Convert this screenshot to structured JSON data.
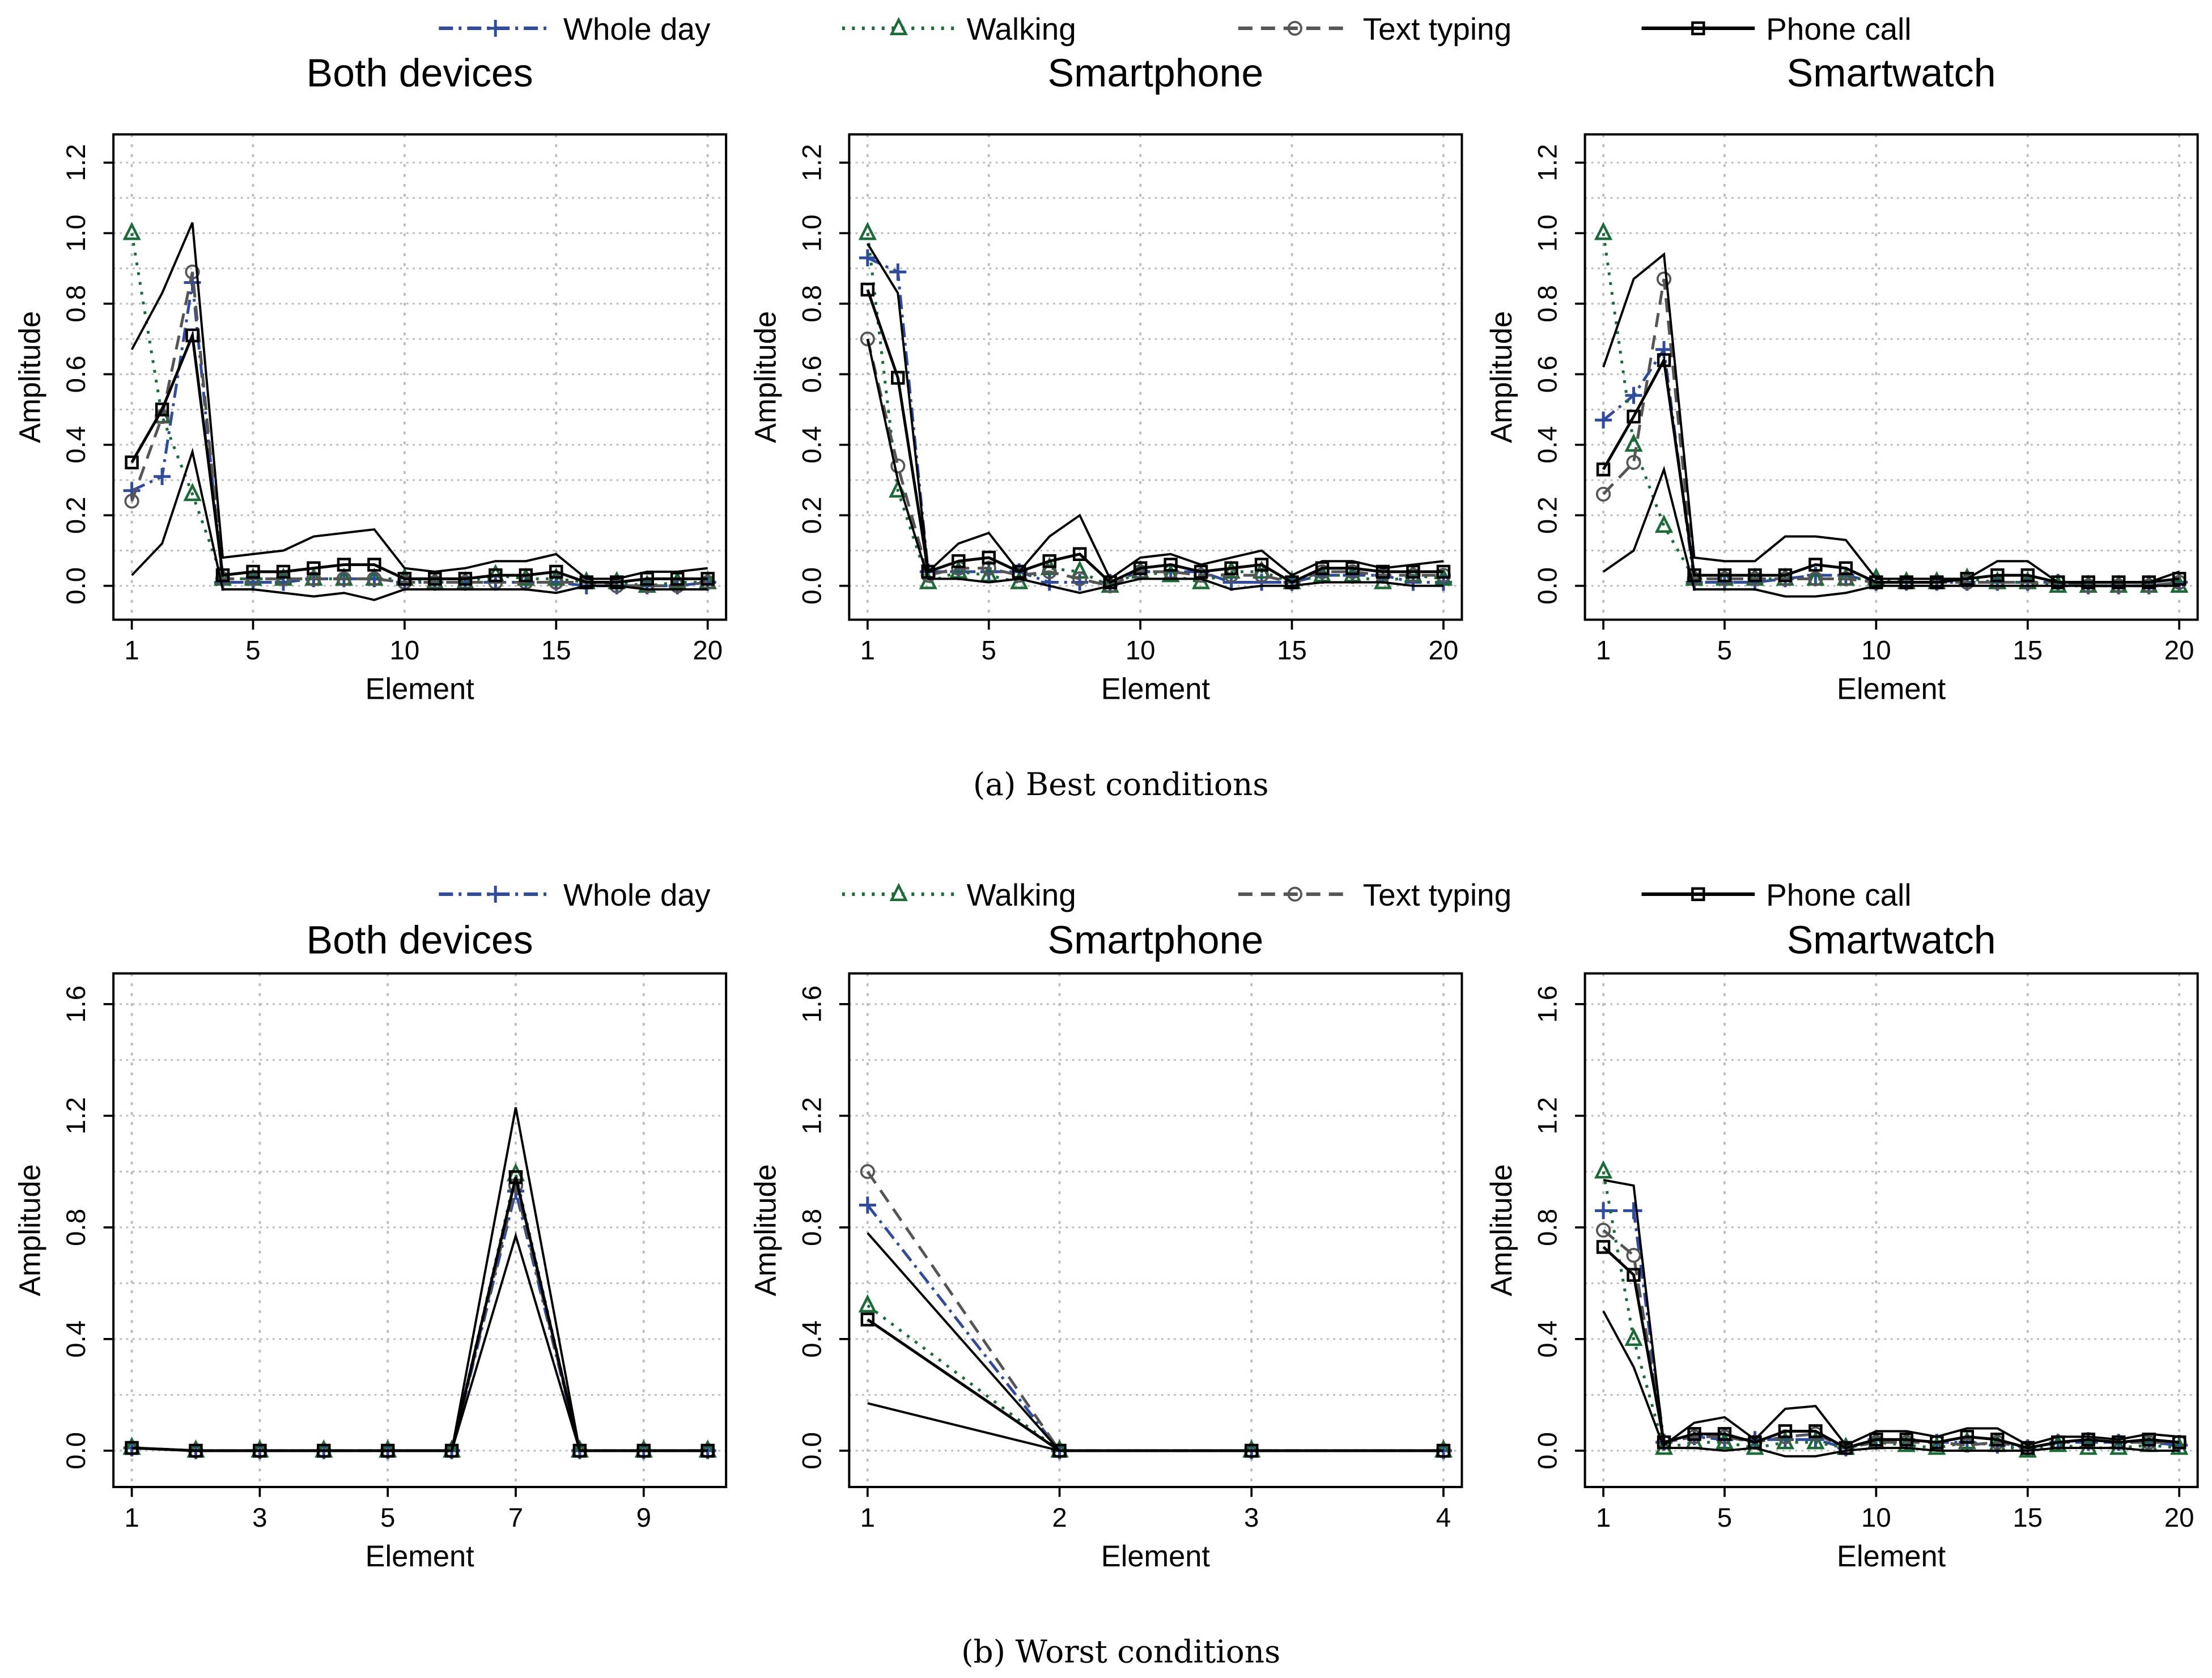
{
  "legend": [
    {
      "name": "Whole day",
      "color": "#2f4ba0",
      "dash": "10,4,2,4",
      "marker": "plus"
    },
    {
      "name": "Walking",
      "color": "#1a6b35",
      "dash": "2,5",
      "marker": "triangle"
    },
    {
      "name": "Text typing",
      "color": "#555555",
      "dash": "10,6",
      "marker": "circle"
    },
    {
      "name": "Phone call",
      "color": "#000000",
      "dash": "",
      "marker": "square"
    }
  ],
  "captions": {
    "a": "(a)  Best conditions",
    "b": "(b)  Worst conditions"
  },
  "chart_data": [
    {
      "type": "line",
      "group": "a",
      "title": "Both devices",
      "xlabel": "Element",
      "ylabel": "Amplitude",
      "xlim": [
        1,
        20
      ],
      "xticks": [
        1,
        5,
        10,
        15,
        20
      ],
      "ylim": [
        -0.096,
        1.28
      ],
      "yticks": [
        "0.0",
        "0.2",
        "0.4",
        "0.6",
        "0.8",
        "1.0",
        "1.2"
      ],
      "yminor": 0.1,
      "grid": true,
      "series": [
        {
          "name": "Whole day",
          "values": [
            0.27,
            0.31,
            0.86,
            0.01,
            0.01,
            0.01,
            0.02,
            0.02,
            0.02,
            0.01,
            0.01,
            0.01,
            0.01,
            0.01,
            0.01,
            0.0,
            0.0,
            0.0,
            0.0,
            0.01
          ]
        },
        {
          "name": "Walking",
          "values": [
            1.0,
            0.48,
            0.26,
            0.02,
            0.02,
            0.02,
            0.02,
            0.02,
            0.02,
            0.02,
            0.01,
            0.01,
            0.03,
            0.02,
            0.02,
            0.01,
            0.01,
            0.0,
            0.01,
            0.01
          ]
        },
        {
          "name": "Text typing",
          "values": [
            0.24,
            0.48,
            0.89,
            0.02,
            0.02,
            0.02,
            0.02,
            0.02,
            0.02,
            0.01,
            0.01,
            0.01,
            0.01,
            0.01,
            0.01,
            0.01,
            0.0,
            0.0,
            0.0,
            0.01
          ]
        },
        {
          "name": "Phone call",
          "values": [
            0.35,
            0.5,
            0.71,
            0.03,
            0.04,
            0.04,
            0.05,
            0.06,
            0.06,
            0.02,
            0.02,
            0.02,
            0.03,
            0.03,
            0.04,
            0.01,
            0.01,
            0.02,
            0.02,
            0.02
          ],
          "upper": [
            0.67,
            0.83,
            1.03,
            0.08,
            0.09,
            0.1,
            0.14,
            0.15,
            0.16,
            0.05,
            0.04,
            0.05,
            0.07,
            0.07,
            0.09,
            0.02,
            0.02,
            0.04,
            0.04,
            0.05
          ],
          "lower": [
            0.03,
            0.12,
            0.38,
            -0.01,
            -0.01,
            -0.02,
            -0.03,
            -0.02,
            -0.04,
            -0.01,
            -0.01,
            -0.01,
            -0.01,
            -0.01,
            -0.02,
            0,
            0,
            -0.01,
            -0.01,
            -0.01
          ]
        }
      ]
    },
    {
      "type": "line",
      "group": "a",
      "title": "Smartphone",
      "xlabel": "Element",
      "ylabel": "Amplitude",
      "xlim": [
        1,
        20
      ],
      "xticks": [
        1,
        5,
        10,
        15,
        20
      ],
      "ylim": [
        -0.096,
        1.28
      ],
      "yticks": [
        "0.0",
        "0.2",
        "0.4",
        "0.6",
        "0.8",
        "1.0",
        "1.2"
      ],
      "yminor": 0.1,
      "grid": true,
      "series": [
        {
          "name": "Whole day",
          "values": [
            0.93,
            0.89,
            0.04,
            0.04,
            0.04,
            0.04,
            0.01,
            0.01,
            0.01,
            0.04,
            0.04,
            0.04,
            0.01,
            0.01,
            0.01,
            0.03,
            0.03,
            0.03,
            0.01,
            0.01
          ]
        },
        {
          "name": "Walking",
          "values": [
            1.0,
            0.27,
            0.01,
            0.04,
            0.03,
            0.01,
            0.05,
            0.04,
            0.0,
            0.04,
            0.03,
            0.01,
            0.04,
            0.04,
            0.01,
            0.03,
            0.03,
            0.01,
            0.03,
            0.02
          ]
        },
        {
          "name": "Text typing",
          "values": [
            0.7,
            0.34,
            0.03,
            0.05,
            0.05,
            0.03,
            0.04,
            0.02,
            0.0,
            0.04,
            0.04,
            0.03,
            0.03,
            0.03,
            0.01,
            0.04,
            0.04,
            0.03,
            0.03,
            0.03
          ]
        },
        {
          "name": "Phone call",
          "values": [
            0.84,
            0.59,
            0.04,
            0.07,
            0.08,
            0.04,
            0.07,
            0.09,
            0.01,
            0.05,
            0.06,
            0.04,
            0.05,
            0.06,
            0.01,
            0.05,
            0.05,
            0.04,
            0.04,
            0.04
          ],
          "upper": [
            0.97,
            0.83,
            0.04,
            0.12,
            0.15,
            0.04,
            0.14,
            0.2,
            0.02,
            0.08,
            0.09,
            0.06,
            0.08,
            0.1,
            0.03,
            0.07,
            0.07,
            0.05,
            0.06,
            0.07
          ],
          "lower": [
            0.7,
            0.3,
            0.02,
            0.02,
            0.01,
            0.02,
            0.0,
            -0.02,
            0.0,
            0.02,
            0.02,
            0.02,
            -0.01,
            0.0,
            0.0,
            0.01,
            0.01,
            0.01,
            0.0,
            0.0
          ]
        }
      ]
    },
    {
      "type": "line",
      "group": "a",
      "title": "Smartwatch",
      "xlabel": "Element",
      "ylabel": "Amplitude",
      "xlim": [
        1,
        20
      ],
      "xticks": [
        1,
        5,
        10,
        15,
        20
      ],
      "ylim": [
        -0.096,
        1.28
      ],
      "yticks": [
        "0.0",
        "0.2",
        "0.4",
        "0.6",
        "0.8",
        "1.0",
        "1.2"
      ],
      "yminor": 0.1,
      "grid": true,
      "series": [
        {
          "name": "Whole day",
          "values": [
            0.47,
            0.54,
            0.67,
            0.01,
            0.01,
            0.01,
            0.02,
            0.03,
            0.03,
            0.01,
            0.01,
            0.01,
            0.01,
            0.01,
            0.01,
            0.01,
            0.0,
            0.0,
            0.0,
            0.01
          ]
        },
        {
          "name": "Walking",
          "values": [
            1.0,
            0.4,
            0.17,
            0.02,
            0.02,
            0.02,
            0.02,
            0.02,
            0.02,
            0.02,
            0.01,
            0.01,
            0.02,
            0.01,
            0.01,
            0.0,
            0.0,
            0.0,
            0.0,
            0.0
          ]
        },
        {
          "name": "Text typing",
          "values": [
            0.26,
            0.35,
            0.87,
            0.02,
            0.02,
            0.02,
            0.02,
            0.02,
            0.02,
            0.01,
            0.01,
            0.01,
            0.01,
            0.01,
            0.01,
            0.01,
            0.0,
            0.0,
            0.0,
            0.01
          ]
        },
        {
          "name": "Phone call",
          "values": [
            0.33,
            0.48,
            0.64,
            0.03,
            0.03,
            0.03,
            0.03,
            0.06,
            0.05,
            0.01,
            0.01,
            0.01,
            0.02,
            0.03,
            0.03,
            0.01,
            0.01,
            0.01,
            0.01,
            0.02
          ],
          "upper": [
            0.62,
            0.87,
            0.94,
            0.08,
            0.07,
            0.07,
            0.14,
            0.14,
            0.13,
            0.02,
            0.02,
            0.02,
            0.02,
            0.07,
            0.07,
            0.01,
            0.01,
            0.01,
            0.01,
            0.04
          ],
          "lower": [
            0.04,
            0.1,
            0.33,
            -0.01,
            -0.01,
            -0.01,
            -0.03,
            -0.03,
            -0.02,
            0,
            0,
            0,
            0,
            0,
            0,
            0,
            0,
            0,
            0,
            0
          ]
        }
      ]
    },
    {
      "type": "line",
      "group": "b",
      "title": "Both devices",
      "xlabel": "Element",
      "ylabel": "Amplitude",
      "xlim": [
        1,
        10
      ],
      "xticks": [
        1,
        3,
        5,
        7,
        9
      ],
      "ylim": [
        -0.13,
        1.71
      ],
      "yticks": [
        "0.0",
        "0.4",
        "0.8",
        "1.2",
        "1.6"
      ],
      "yminor": 0.2,
      "grid": true,
      "series": [
        {
          "name": "Whole day",
          "values": [
            0.01,
            0,
            0,
            0,
            0,
            0,
            0.93,
            0,
            0,
            0
          ]
        },
        {
          "name": "Walking",
          "values": [
            0.01,
            0,
            0,
            0,
            0,
            0,
            0.99,
            0,
            0,
            0
          ]
        },
        {
          "name": "Text typing",
          "values": [
            0.01,
            0,
            0,
            0,
            0,
            0,
            0.95,
            0,
            0,
            0
          ]
        },
        {
          "name": "Phone call",
          "values": [
            0.01,
            0,
            0,
            0,
            0,
            0,
            0.98,
            0,
            0,
            0
          ],
          "upper": [
            0.01,
            0,
            0,
            0,
            0,
            0,
            1.23,
            0,
            0,
            0
          ],
          "lower": [
            0.01,
            0,
            0,
            0,
            0,
            0,
            0.77,
            0,
            0,
            0
          ]
        }
      ]
    },
    {
      "type": "line",
      "group": "b",
      "title": "Smartphone",
      "xlabel": "Element",
      "ylabel": "Amplitude",
      "xlim": [
        1,
        4
      ],
      "xticks": [
        1,
        2,
        3,
        4
      ],
      "ylim": [
        -0.13,
        1.71
      ],
      "yticks": [
        "0.0",
        "0.4",
        "0.8",
        "1.2",
        "1.6"
      ],
      "yminor": 0.2,
      "grid": true,
      "series": [
        {
          "name": "Whole day",
          "values": [
            0.88,
            0,
            0,
            0
          ]
        },
        {
          "name": "Walking",
          "values": [
            0.52,
            0,
            0,
            0
          ]
        },
        {
          "name": "Text typing",
          "values": [
            1.0,
            0,
            0,
            0
          ]
        },
        {
          "name": "Phone call",
          "values": [
            0.47,
            0,
            0,
            0
          ],
          "upper": [
            0.78,
            0,
            0,
            0
          ],
          "lower": [
            0.17,
            0,
            0,
            0
          ]
        }
      ]
    },
    {
      "type": "line",
      "group": "b",
      "title": "Smartwatch",
      "xlabel": "Element",
      "ylabel": "Amplitude",
      "xlim": [
        1,
        20
      ],
      "xticks": [
        1,
        5,
        10,
        15,
        20
      ],
      "ylim": [
        -0.13,
        1.71
      ],
      "yticks": [
        "0.0",
        "0.4",
        "0.8",
        "1.2",
        "1.6"
      ],
      "yminor": 0.2,
      "grid": true,
      "series": [
        {
          "name": "Whole day",
          "values": [
            0.86,
            0.86,
            0.03,
            0.05,
            0.04,
            0.04,
            0.04,
            0.04,
            0.01,
            0.04,
            0.04,
            0.03,
            0.03,
            0.02,
            0.01,
            0.03,
            0.03,
            0.03,
            0.03,
            0.02
          ]
        },
        {
          "name": "Walking",
          "values": [
            1.0,
            0.4,
            0.01,
            0.03,
            0.03,
            0.01,
            0.03,
            0.03,
            0.01,
            0.03,
            0.02,
            0.01,
            0.03,
            0.02,
            0.0,
            0.02,
            0.01,
            0.01,
            0.02,
            0.01
          ]
        },
        {
          "name": "Text typing",
          "values": [
            0.79,
            0.7,
            0.03,
            0.05,
            0.05,
            0.03,
            0.05,
            0.06,
            0.01,
            0.03,
            0.03,
            0.03,
            0.02,
            0.03,
            0.01,
            0.03,
            0.04,
            0.03,
            0.03,
            0.03
          ]
        },
        {
          "name": "Phone call",
          "values": [
            0.73,
            0.63,
            0.03,
            0.06,
            0.06,
            0.03,
            0.07,
            0.07,
            0.01,
            0.04,
            0.04,
            0.03,
            0.05,
            0.04,
            0.01,
            0.03,
            0.04,
            0.03,
            0.04,
            0.03
          ],
          "upper": [
            0.97,
            0.95,
            0.02,
            0.1,
            0.12,
            0.04,
            0.15,
            0.16,
            0.02,
            0.07,
            0.07,
            0.05,
            0.08,
            0.08,
            0.02,
            0.05,
            0.05,
            0.04,
            0.06,
            0.05
          ],
          "lower": [
            0.5,
            0.3,
            0.01,
            0.01,
            0.0,
            0.01,
            -0.02,
            -0.02,
            0,
            0.01,
            0.01,
            0.0,
            0.0,
            0.0,
            0,
            0.01,
            0.01,
            0.01,
            0.0,
            0.0
          ]
        }
      ]
    }
  ]
}
